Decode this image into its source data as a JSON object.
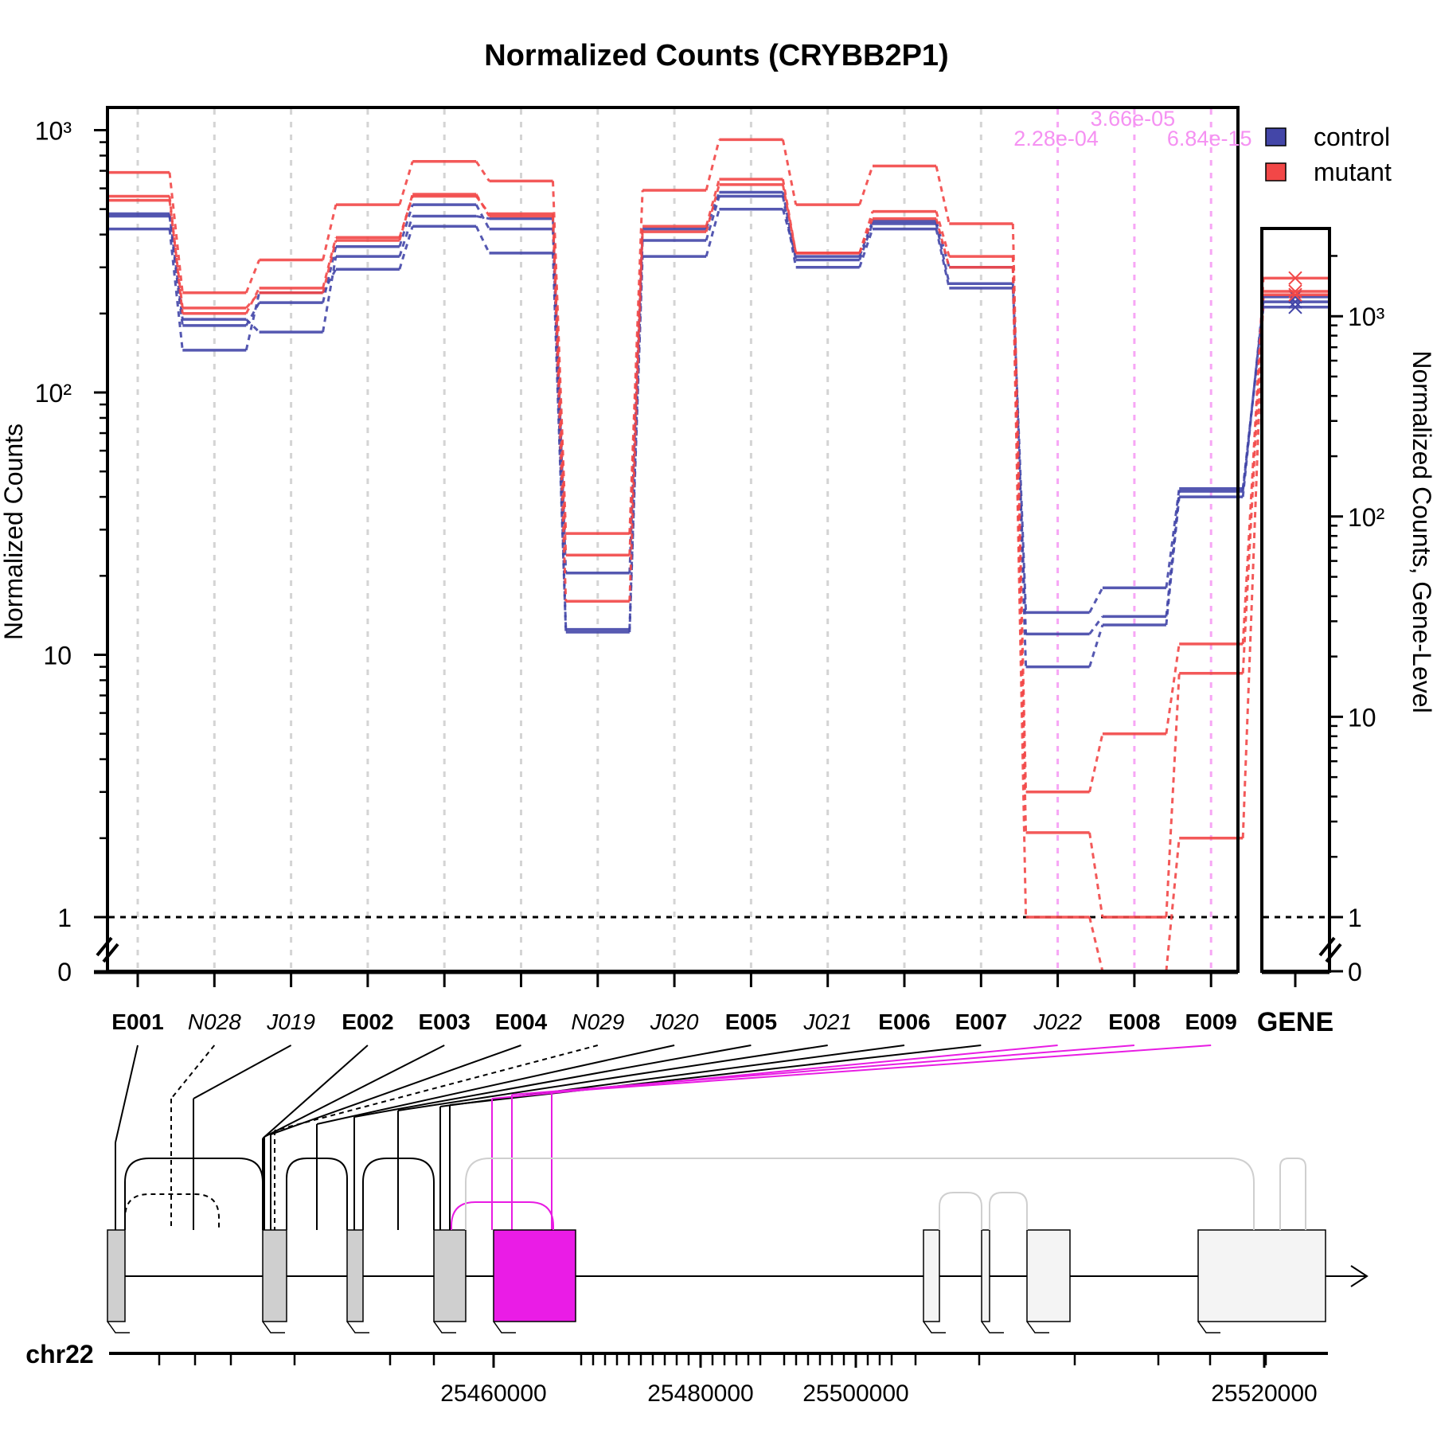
{
  "chart_data": {
    "type": "line",
    "title": "Normalized Counts (CRYBB2P1)",
    "ylabel": "Normalized Counts",
    "ylabel_right": "Normalized Counts, Gene-Level",
    "yscale": "log",
    "ylim": [
      0,
      1300
    ],
    "y_ticks": [
      "0",
      "1",
      "10",
      "10²",
      "10³"
    ],
    "features": [
      {
        "id": "E001",
        "kind": "exon"
      },
      {
        "id": "N028",
        "kind": "novel"
      },
      {
        "id": "J019",
        "kind": "junction"
      },
      {
        "id": "E002",
        "kind": "exon"
      },
      {
        "id": "E003",
        "kind": "exon"
      },
      {
        "id": "E004",
        "kind": "exon"
      },
      {
        "id": "N029",
        "kind": "novel"
      },
      {
        "id": "J020",
        "kind": "junction"
      },
      {
        "id": "E005",
        "kind": "exon"
      },
      {
        "id": "J021",
        "kind": "junction"
      },
      {
        "id": "E006",
        "kind": "exon"
      },
      {
        "id": "E007",
        "kind": "exon"
      },
      {
        "id": "J022",
        "kind": "junction"
      },
      {
        "id": "E008",
        "kind": "exon"
      },
      {
        "id": "E009",
        "kind": "exon"
      }
    ],
    "gene_label": "GENE",
    "legend": [
      {
        "name": "control",
        "color": "#4346A8"
      },
      {
        "name": "mutant",
        "color": "#F24747"
      }
    ],
    "legend_position": "top-right",
    "series": [
      {
        "group": "control",
        "values": [
          480,
          190,
          170,
          330,
          470,
          460,
          20.5,
          420,
          580,
          320,
          440,
          260,
          14.5,
          18,
          43
        ]
      },
      {
        "group": "control",
        "values": [
          470,
          180,
          220,
          360,
          520,
          420,
          12.5,
          380,
          560,
          300,
          420,
          250,
          12,
          14,
          42
        ]
      },
      {
        "group": "control",
        "values": [
          420,
          145,
          240,
          295,
          430,
          340,
          12.2,
          330,
          500,
          330,
          450,
          300,
          9,
          13,
          40
        ]
      },
      {
        "group": "mutant",
        "values": [
          690,
          240,
          320,
          520,
          760,
          640,
          29,
          590,
          920,
          520,
          730,
          440,
          3,
          5,
          11
        ]
      },
      {
        "group": "mutant",
        "values": [
          560,
          200,
          250,
          390,
          560,
          480,
          24,
          430,
          650,
          340,
          490,
          330,
          2.1,
          1,
          8.5
        ]
      },
      {
        "group": "mutant",
        "values": [
          540,
          210,
          240,
          380,
          570,
          470,
          16,
          410,
          620,
          340,
          460,
          300,
          1,
          0,
          2
        ]
      }
    ],
    "gene_level": {
      "ylim": [
        0,
        2300
      ],
      "y_ticks": [
        "0",
        "1",
        "10",
        "10²",
        "10³"
      ],
      "control": [
        1110,
        1180,
        1250
      ],
      "mutant": [
        1550,
        1330,
        1280
      ]
    },
    "significant": [
      {
        "feature": "J022",
        "pvalue": "2.28e-04"
      },
      {
        "feature": "E008",
        "pvalue": "3.66e-05"
      },
      {
        "feature": "E009",
        "pvalue": "6.84e-15"
      }
    ],
    "gene_model": {
      "chromosome": "chr22",
      "axis_labels": [
        "25460000",
        "25480000",
        "25500000",
        "25520000"
      ]
    }
  }
}
